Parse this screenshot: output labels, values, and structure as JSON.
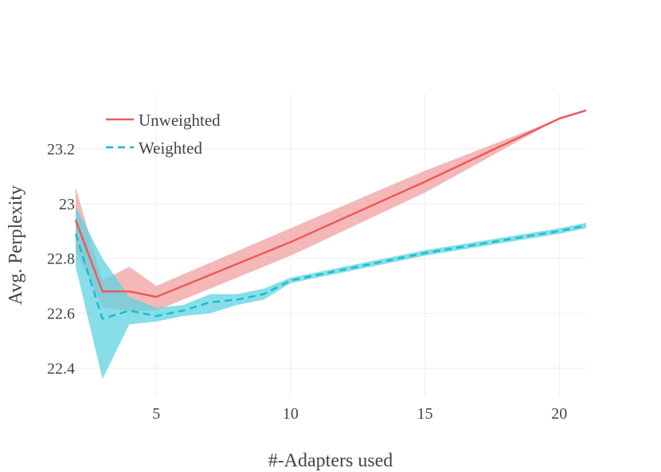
{
  "chart_data": {
    "type": "line",
    "title": "",
    "xlabel": "#-Adapters used",
    "ylabel": "Avg. Perplexity",
    "xlim": [
      2,
      21
    ],
    "ylim": [
      22.3,
      23.4
    ],
    "xticks": [
      5,
      10,
      15,
      20
    ],
    "yticks": [
      22.4,
      22.6,
      22.8,
      23,
      23.2
    ],
    "xtick_labels": [
      "5",
      "10",
      "15",
      "20"
    ],
    "ytick_labels": [
      "22.4",
      "22.6",
      "22.8",
      "23",
      "23.2"
    ],
    "grid": true,
    "legend_position": "top-left",
    "series": [
      {
        "name": "Unweighted",
        "color": "#ef5a5a",
        "band_color": "#f0a0a0",
        "dash": "solid",
        "x": [
          2,
          3,
          4,
          5,
          10,
          15,
          20,
          21
        ],
        "y": [
          22.94,
          22.68,
          22.68,
          22.66,
          22.86,
          23.08,
          23.31,
          23.34
        ],
        "lower": [
          22.83,
          22.62,
          22.61,
          22.61,
          22.81,
          23.04,
          23.31,
          23.34
        ],
        "upper": [
          23.06,
          22.72,
          22.77,
          22.7,
          22.91,
          23.12,
          23.31,
          23.34
        ]
      },
      {
        "name": "Weighted",
        "color": "#17becf",
        "band_color": "#5fd3e2",
        "dash": "dashed",
        "x": [
          2,
          3,
          4,
          5,
          6,
          7,
          8,
          9,
          10,
          15,
          20,
          21
        ],
        "y": [
          22.89,
          22.58,
          22.61,
          22.59,
          22.61,
          22.64,
          22.65,
          22.67,
          22.72,
          22.82,
          22.9,
          22.92
        ],
        "lower": [
          22.77,
          22.36,
          22.56,
          22.57,
          22.59,
          22.6,
          22.63,
          22.65,
          22.71,
          22.81,
          22.89,
          22.91
        ],
        "upper": [
          22.99,
          22.8,
          22.66,
          22.62,
          22.63,
          22.67,
          22.67,
          22.69,
          22.73,
          22.83,
          22.91,
          22.93
        ]
      }
    ]
  }
}
